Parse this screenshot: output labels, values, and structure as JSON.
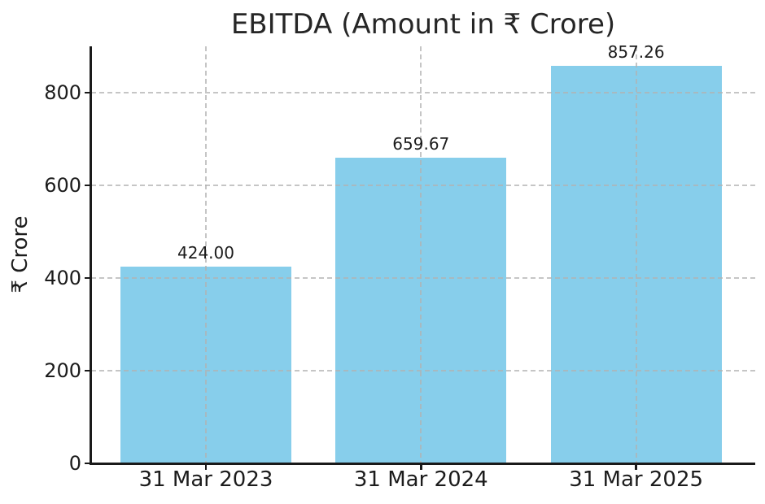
{
  "figure": {
    "background_color": "#ffffff",
    "text_color": "#1c1c1c",
    "spine_color": "#1a1a1a",
    "grid_color": "#b2b2b2"
  },
  "chart_data": {
    "type": "bar",
    "title": "EBITDA (Amount in ₹ Crore)",
    "xlabel": "",
    "ylabel": "₹ Crore",
    "categories": [
      "31 Mar 2023",
      "31 Mar 2024",
      "31 Mar 2025"
    ],
    "values": [
      424.0,
      659.67,
      857.26
    ],
    "value_labels": [
      "424.00",
      "659.67",
      "857.26"
    ],
    "bar_color": "#87CEEB",
    "ylim": [
      0,
      900
    ],
    "yticks": [
      0,
      200,
      400,
      600,
      800
    ],
    "ytick_labels": [
      "0",
      "200",
      "400",
      "600",
      "800"
    ],
    "grid": "dashed gridlines on both axes at tick positions",
    "legend_position": "none"
  }
}
